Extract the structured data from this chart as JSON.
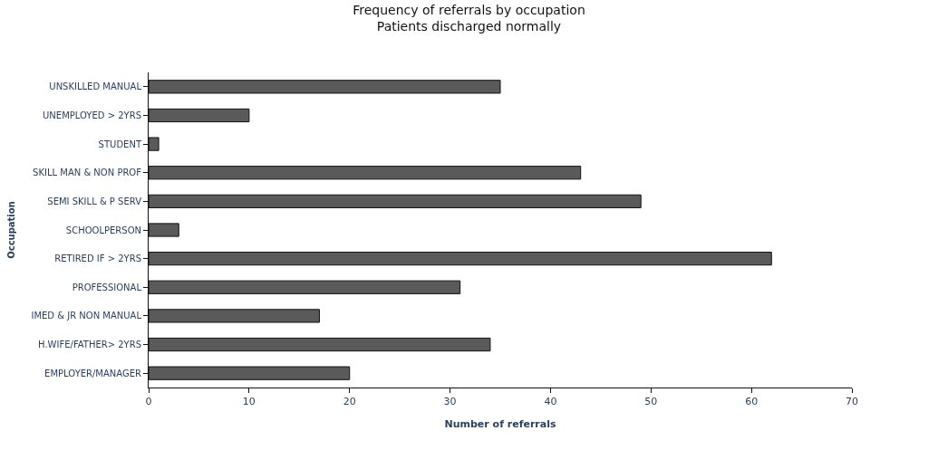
{
  "chart_data": {
    "type": "bar",
    "orientation": "horizontal",
    "title": "Frequency of referrals by occupation",
    "subtitle": "Patients discharged normally",
    "xlabel": "Number of referrals",
    "ylabel": "Occupation",
    "categories": [
      "UNSKILLED MANUAL",
      "UNEMPLOYED > 2YRS",
      "STUDENT",
      "SKILL MAN & NON PROF",
      "SEMI SKILL & P SERV",
      "SCHOOLPERSON",
      "RETIRED IF > 2YRS",
      "PROFESSIONAL",
      "IMED & JR NON MANUAL",
      "H.WIFE/FATHER> 2YRS",
      "EMPLOYER/MANAGER"
    ],
    "values": [
      35,
      10,
      1,
      43,
      49,
      3,
      62,
      31,
      17,
      34,
      20
    ],
    "color": "#5a5a5a",
    "xlim": [
      0,
      70
    ],
    "xticks": [
      0,
      10,
      20,
      30,
      40,
      50,
      60,
      70
    ]
  }
}
